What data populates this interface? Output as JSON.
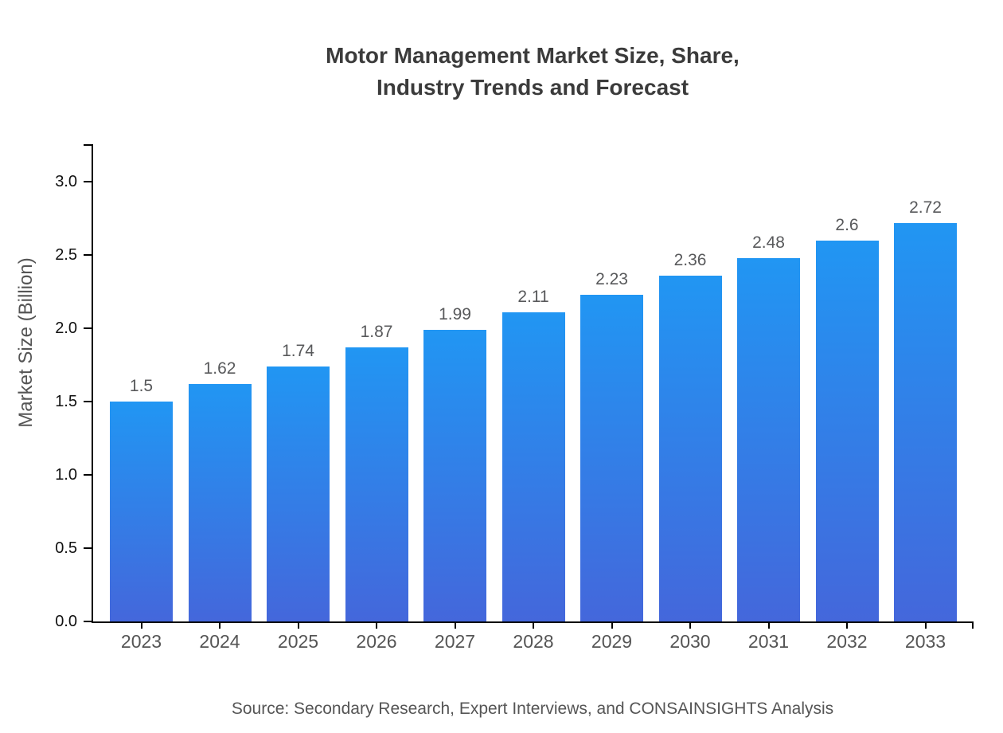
{
  "title": {
    "line1": "Motor Management Market Size, Share,",
    "line2": "Industry Trends and Forecast"
  },
  "source_note": "Source: Secondary Research, Expert Interviews, and CONSAINSIGHTS Analysis",
  "chart_data": {
    "type": "bar",
    "title": "Motor Management Market Size, Share, Industry Trends and Forecast",
    "categories": [
      "2023",
      "2024",
      "2025",
      "2026",
      "2027",
      "2028",
      "2029",
      "2030",
      "2031",
      "2032",
      "2033"
    ],
    "values": [
      1.5,
      1.62,
      1.74,
      1.87,
      1.99,
      2.11,
      2.23,
      2.36,
      2.48,
      2.6,
      2.72
    ],
    "value_labels": [
      "1.5",
      "1.62",
      "1.74",
      "1.87",
      "1.99",
      "2.11",
      "2.23",
      "2.36",
      "2.48",
      "2.6",
      "2.72"
    ],
    "xlabel": "",
    "ylabel": "Market Size (Billion)",
    "ylim": [
      0,
      3.26
    ],
    "yticks": [
      0,
      0.5,
      1,
      1.5,
      2,
      2.5,
      3
    ],
    "ytick_labels": [
      "0.0",
      "0.5",
      "1.0",
      "1.5",
      "2.0",
      "2.5",
      "3.0"
    ],
    "grid": false,
    "legend": "none",
    "bar_color_top": "#2196f3",
    "bar_color_bottom": "#4467db"
  },
  "colors": {
    "title": "#3b3b3b",
    "axis": "#000000",
    "ytick_label": "#111111",
    "category_label": "#555555",
    "value_label": "#58595b",
    "source": "#555555",
    "background": "#ffffff"
  }
}
